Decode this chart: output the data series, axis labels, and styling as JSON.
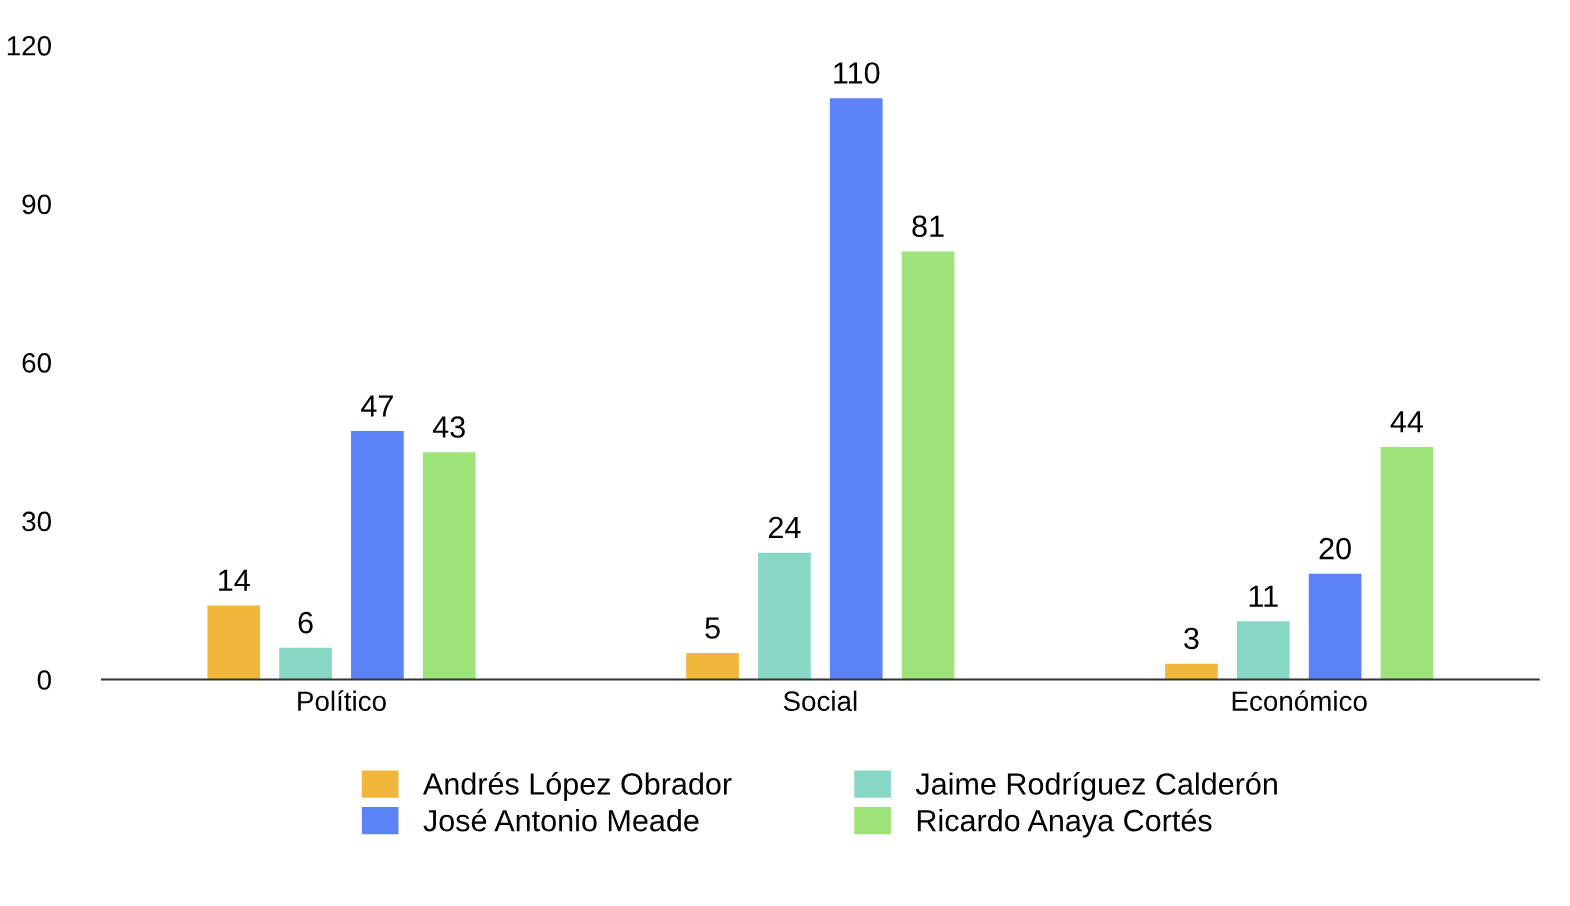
{
  "chart_data": {
    "type": "bar",
    "categories": [
      "Político",
      "Social",
      "Económico"
    ],
    "series": [
      {
        "name": "Andrés López Obrador",
        "color": "#f0b73a",
        "values": [
          14,
          5,
          3
        ]
      },
      {
        "name": "Jaime Rodríguez Calderón",
        "color": "#86d8c5",
        "values": [
          6,
          24,
          11
        ]
      },
      {
        "name": "José Antonio Meade",
        "color": "#5b82f6",
        "values": [
          47,
          110,
          20
        ]
      },
      {
        "name": "Ricardo Anaya Cortés",
        "color": "#9de37a",
        "values": [
          43,
          81,
          44
        ]
      }
    ],
    "ylim": [
      0,
      120
    ],
    "yticks": [
      0,
      30,
      60,
      90,
      120
    ],
    "grid": false,
    "legend": "bottom",
    "data_labels": true
  }
}
